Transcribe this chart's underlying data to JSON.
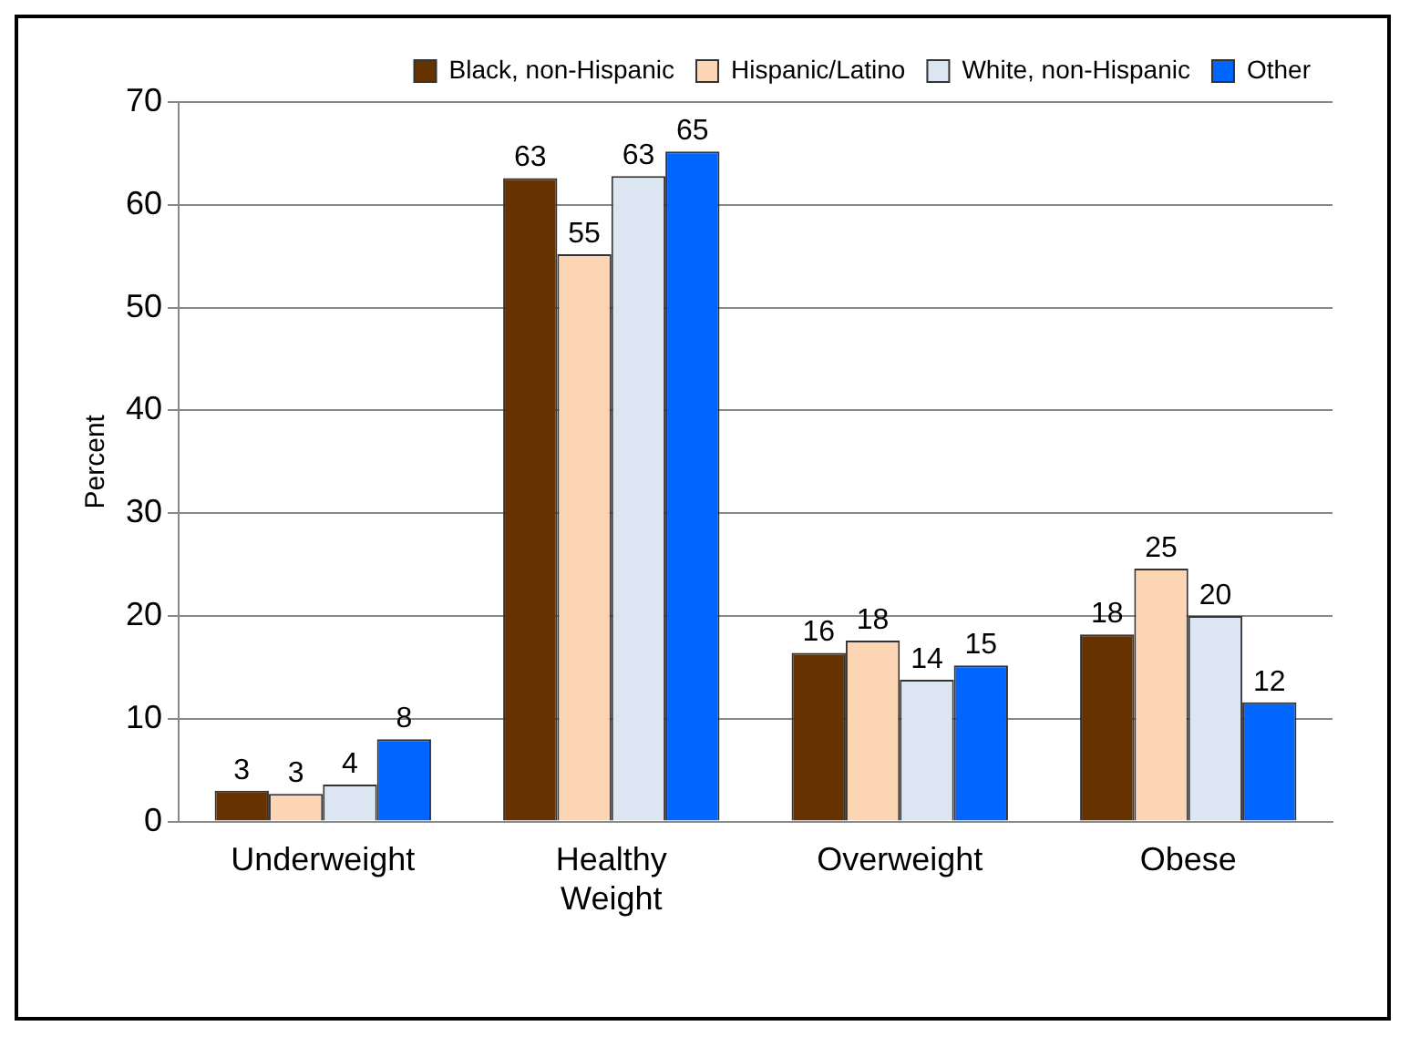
{
  "chart_data": {
    "type": "bar",
    "ylabel": "Percent",
    "categories": [
      "Underweight",
      "Healthy Weight",
      "Overweight",
      "Obese"
    ],
    "series": [
      {
        "name": "Black, non-Hispanic",
        "color": "#663300",
        "values": [
          3.0,
          62.6,
          16.4,
          18.2
        ],
        "value_labels": [
          "3",
          "63",
          "16",
          "18"
        ]
      },
      {
        "name": "Hispanic/Latino",
        "color": "#fcd5b4",
        "values": [
          2.7,
          55.2,
          17.6,
          24.6
        ],
        "value_labels": [
          "3",
          "55",
          "18",
          "25"
        ]
      },
      {
        "name": "White, non-Hispanic",
        "color": "#dce6f2",
        "values": [
          3.6,
          62.8,
          13.8,
          20.0
        ],
        "value_labels": [
          "4",
          "63",
          "14",
          "20"
        ]
      },
      {
        "name": "Other",
        "color": "#0066ff",
        "values": [
          8.0,
          65.2,
          15.2,
          11.6
        ],
        "value_labels": [
          "8",
          "65",
          "15",
          "12"
        ]
      }
    ],
    "ylim": [
      0,
      70
    ],
    "yticks": [
      0,
      10,
      20,
      30,
      40,
      50,
      60,
      70
    ],
    "grid": "y",
    "legend": "top"
  }
}
